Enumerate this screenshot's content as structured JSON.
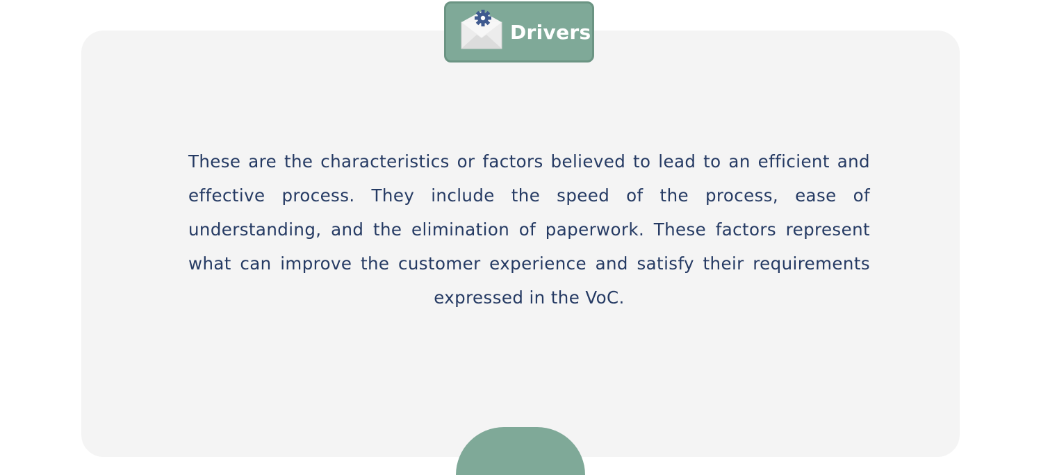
{
  "badge": {
    "label": "Drivers",
    "icon": "envelope-gear-icon"
  },
  "content": {
    "description": "These are the characteristics or factors believed to lead to an efficient and effective process. They include the speed of the process, ease of understanding, and the elimination of paperwork. These factors represent what can improve the customer experience and satisfy their requirements expressed in the VoC."
  },
  "colors": {
    "accent": "#7fa998",
    "card_background": "#f4f4f4",
    "text": "#253a63",
    "icon_gear": "#3f5a8f"
  }
}
